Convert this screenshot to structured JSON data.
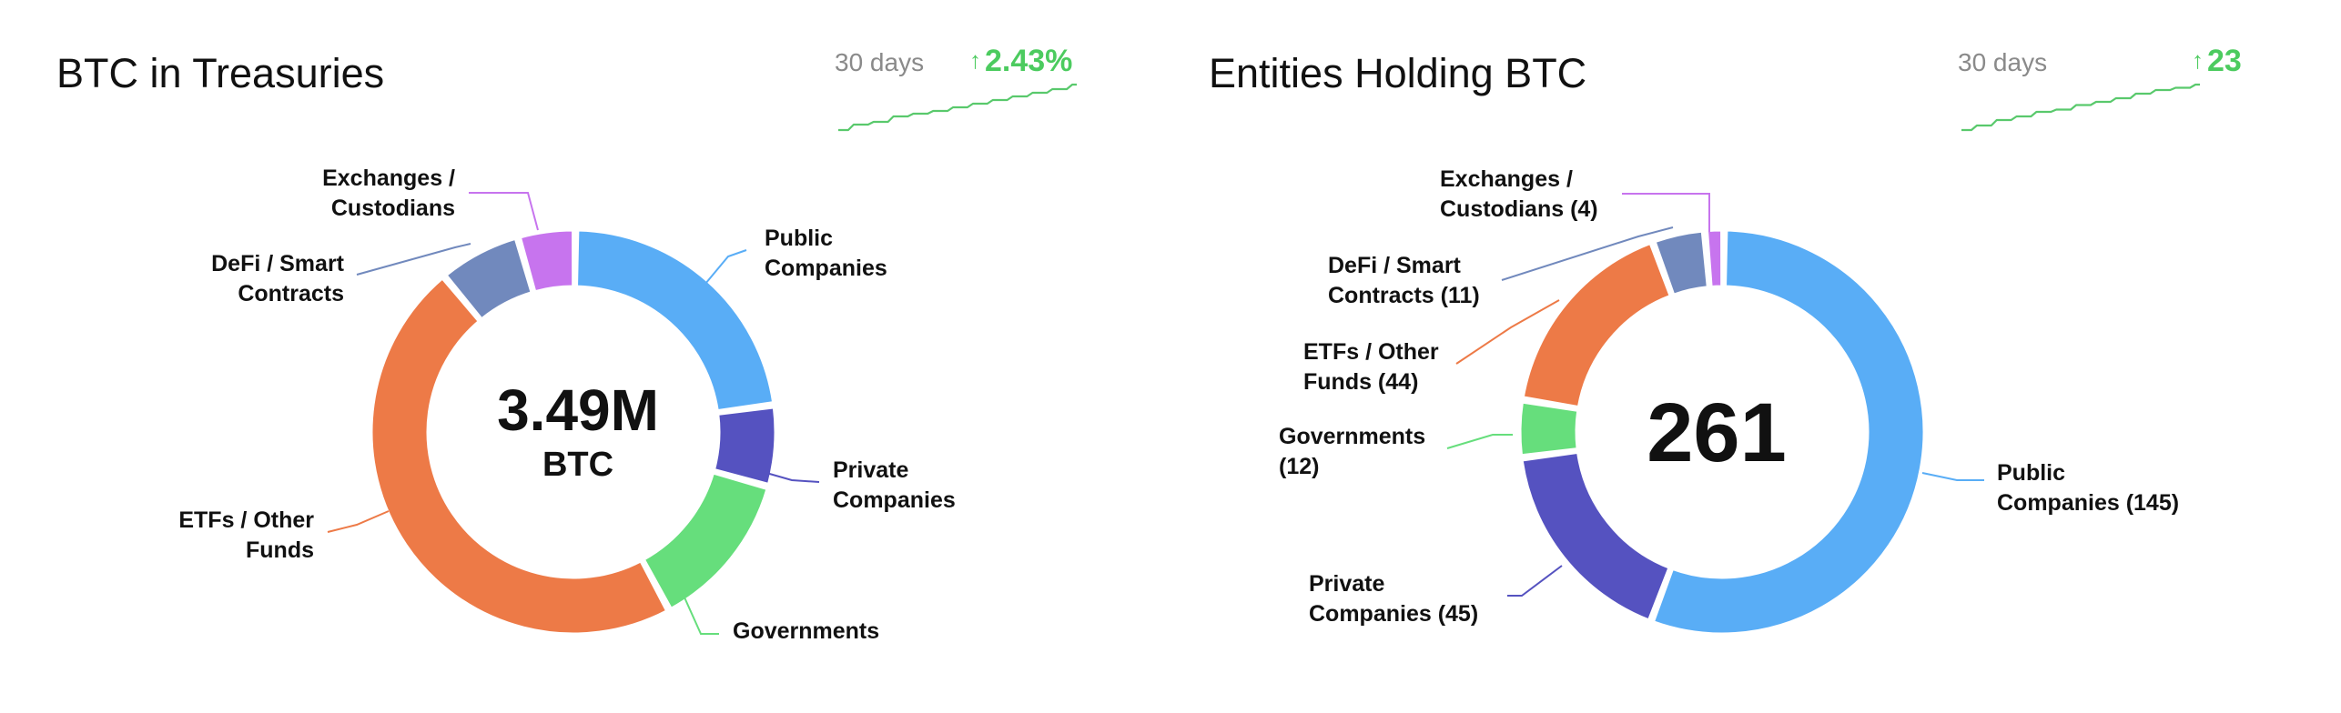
{
  "chart_data": [
    {
      "type": "pie",
      "title": "BTC in Treasuries",
      "center_value": "3.49M",
      "center_unit": "BTC",
      "trend": {
        "period": "30 days",
        "change": "2.43%",
        "direction": "up",
        "sparkline": [
          0.0,
          0.12,
          0.18,
          0.3,
          0.36,
          0.42,
          0.5,
          0.58,
          0.66,
          0.74,
          0.82,
          0.9,
          1.0
        ]
      },
      "categories": [
        "Public Companies",
        "Private Companies",
        "Governments",
        "ETFs / Other Funds",
        "DeFi / Smart Contracts",
        "Exchanges / Custodians"
      ],
      "values": [
        22.7,
        6.5,
        12.8,
        46.8,
        6.6,
        4.6
      ],
      "colors": [
        "#59adf6",
        "#5552c0",
        "#66de7c",
        "#ed7a47",
        "#7189bd",
        "#c774ee"
      ],
      "labels": [
        "Public\nCompanies",
        "Private\nCompanies",
        "Governments",
        "ETFs / Other\nFunds",
        "DeFi / Smart\nContracts",
        "Exchanges /\nCustodians"
      ]
    },
    {
      "type": "pie",
      "title": "Entities Holding BTC",
      "center_value": "261",
      "trend": {
        "period": "30 days",
        "change": "23",
        "direction": "up",
        "sparkline": [
          0.0,
          0.1,
          0.22,
          0.3,
          0.4,
          0.45,
          0.55,
          0.62,
          0.7,
          0.8,
          0.88,
          0.93,
          1.0
        ]
      },
      "categories": [
        "Public Companies",
        "Private Companies",
        "Governments",
        "ETFs / Other Funds",
        "DeFi / Smart Contracts",
        "Exchanges / Custodians"
      ],
      "values": [
        145,
        45,
        12,
        44,
        11,
        4
      ],
      "colors": [
        "#59adf6",
        "#5552c0",
        "#66de7c",
        "#ed7a47",
        "#7189bd",
        "#c774ee"
      ],
      "labels": [
        "Public\nCompanies (145)",
        "Private\nCompanies (45)",
        "Governments\n(12)",
        "ETFs / Other\nFunds (44)",
        "DeFi / Smart\nContracts (11)",
        "Exchanges /\nCustodians (4)"
      ]
    }
  ]
}
